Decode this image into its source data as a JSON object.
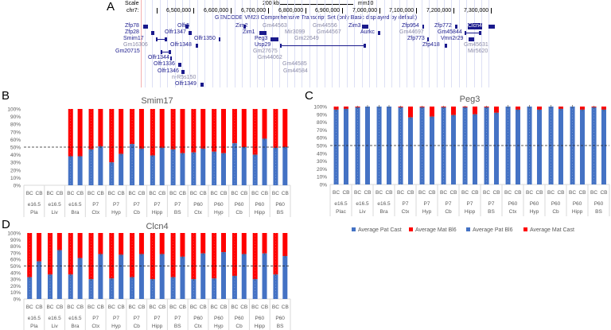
{
  "panel_labels": {
    "a": "A",
    "b": "B",
    "c": "C",
    "d": "D"
  },
  "browser": {
    "scale_label": "Scale",
    "scale_value": "200 kb",
    "assembly": "mm10",
    "chrom_label": "chr7:",
    "ticks": [
      "6,500,000",
      "6,600,000",
      "6,700,000",
      "6,800,000",
      "6,900,000",
      "7,000,000",
      "7,100,000",
      "7,200,000",
      "7,300,000"
    ],
    "track_title": "GENCODE VM23 Comprehensive Transcript Set (only Basic displayed by default)",
    "genes": [
      {
        "name": "Zfp78",
        "style": "dark"
      },
      {
        "name": "Olfr5",
        "style": "dark"
      },
      {
        "name": "Zim2",
        "style": "dark"
      },
      {
        "name": "Gm44563",
        "style": "gray"
      },
      {
        "name": "Gm44556",
        "style": "gray"
      },
      {
        "name": "Zim3",
        "style": "dark"
      },
      {
        "name": "Zfp954",
        "style": "dark"
      },
      {
        "name": "Zfp772",
        "style": "dark"
      },
      {
        "name": "Clcn4",
        "style": "highlight"
      },
      {
        "name": "Zfp28",
        "style": "dark"
      },
      {
        "name": "Olfr1347",
        "style": "dark"
      },
      {
        "name": "Zim1",
        "style": "dark"
      },
      {
        "name": "Mir3099",
        "style": "gray"
      },
      {
        "name": "Gm44567",
        "style": "gray"
      },
      {
        "name": "Aurkc",
        "style": "dark"
      },
      {
        "name": "Gm44697",
        "style": "gray"
      },
      {
        "name": "Gm45844",
        "style": "dark"
      },
      {
        "name": "Smim17",
        "style": "dark"
      },
      {
        "name": "Olfr1350",
        "style": "dark"
      },
      {
        "name": "Peg3",
        "style": "dark"
      },
      {
        "name": "Gm22649",
        "style": "gray"
      },
      {
        "name": "Zfp773",
        "style": "dark"
      },
      {
        "name": "Vmn2r29",
        "style": "dark"
      },
      {
        "name": "Gm16306",
        "style": "gray"
      },
      {
        "name": "Olfr1348",
        "style": "dark"
      },
      {
        "name": "Usp29",
        "style": "dark"
      },
      {
        "name": "Zfp418",
        "style": "dark"
      },
      {
        "name": "Gm45631",
        "style": "gray"
      },
      {
        "name": "Gm20715",
        "style": "dark"
      },
      {
        "name": "Gm27675",
        "style": "gray"
      },
      {
        "name": "Mir5620",
        "style": "gray"
      },
      {
        "name": "Olfr1344",
        "style": "dark"
      },
      {
        "name": "Gm44062",
        "style": "gray"
      },
      {
        "name": "Olfr1336",
        "style": "dark"
      },
      {
        "name": "Gm44585",
        "style": "gray"
      },
      {
        "name": "Olfr1346",
        "style": "dark"
      },
      {
        "name": "Gm44584",
        "style": "gray"
      },
      {
        "name": "n-R5s150",
        "style": "gray"
      },
      {
        "name": "Olfr1349",
        "style": "dark"
      }
    ]
  },
  "legend": [
    "Average Pat Cast",
    "Average Mat Bl6",
    "Average Pat Bl6",
    "Average Mat Cast"
  ],
  "colors": {
    "pat": "#4472C4",
    "mat": "#FF0000",
    "grid": "#d9d9d9",
    "axis_text": "#595959"
  },
  "chart_data": [
    {
      "type": "bar",
      "stacked": true,
      "title": "Smim17",
      "ylim": [
        0,
        100
      ],
      "yticks": [
        "0%",
        "10%",
        "20%",
        "30%",
        "40%",
        "50%",
        "60%",
        "70%",
        "80%",
        "90%",
        "100%"
      ],
      "reference_line": 50,
      "groups": [
        [
          "e16.5",
          "Pla"
        ],
        [
          "e16.5",
          "Liv"
        ],
        [
          "e16.5",
          "Bra"
        ],
        [
          "P7",
          "Ctx"
        ],
        [
          "P7",
          "Hyp"
        ],
        [
          "P7",
          "Cb"
        ],
        [
          "P7",
          "Hipp"
        ],
        [
          "P7",
          "BS"
        ],
        [
          "P60",
          "Ctx"
        ],
        [
          "P60",
          "Hyp"
        ],
        [
          "P60",
          "Cb"
        ],
        [
          "P60",
          "Hipp"
        ],
        [
          "P60",
          "BS"
        ]
      ],
      "subcategories": [
        "BC",
        "CB"
      ],
      "pat_values": [
        null,
        null,
        null,
        null,
        38,
        38,
        47,
        51,
        30,
        41,
        54,
        48,
        39,
        49,
        47,
        42,
        43,
        48,
        44,
        42,
        55,
        50,
        40,
        61,
        49,
        50
      ]
    },
    {
      "type": "bar",
      "stacked": true,
      "title": "Peg3",
      "ylim": [
        0,
        100
      ],
      "yticks": [
        "0%",
        "10%",
        "20%",
        "30%",
        "40%",
        "50%",
        "60%",
        "70%",
        "80%",
        "90%",
        "100%"
      ],
      "reference_line": 50,
      "groups": [
        [
          "e16.5",
          "Plac"
        ],
        [
          "e16.5",
          "Liv"
        ],
        [
          "e16.5",
          "Bra"
        ],
        [
          "P7",
          "Ctx"
        ],
        [
          "P7",
          "Hyp"
        ],
        [
          "P7",
          "Cb"
        ],
        [
          "P7",
          "Hipp"
        ],
        [
          "P7",
          "BS"
        ],
        [
          "P60",
          "Ctx"
        ],
        [
          "P60",
          "Hyp"
        ],
        [
          "P60",
          "Cb"
        ],
        [
          "P60",
          "Hipp"
        ],
        [
          "P60",
          "BS"
        ]
      ],
      "subcategories": [
        "BC",
        "CB"
      ],
      "pat_values": [
        96,
        97,
        99,
        100,
        100,
        100,
        99,
        86,
        99,
        87,
        99,
        89,
        99,
        90,
        99,
        92,
        100,
        96,
        100,
        96,
        100,
        97,
        100,
        96,
        99,
        96
      ]
    },
    {
      "type": "bar",
      "stacked": true,
      "title": "Clcn4",
      "ylim": [
        0,
        100
      ],
      "yticks": [
        "0%",
        "10%",
        "20%",
        "30%",
        "40%",
        "50%",
        "60%",
        "70%",
        "80%",
        "90%",
        "100%"
      ],
      "reference_line": 50,
      "groups": [
        [
          "e16.5",
          "Pla"
        ],
        [
          "e16.5",
          "Liv"
        ],
        [
          "e16.5",
          "Bra"
        ],
        [
          "P7",
          "Ctx"
        ],
        [
          "P7",
          "Hyp"
        ],
        [
          "P7",
          "Cb"
        ],
        [
          "P7",
          "Hipp"
        ],
        [
          "P7",
          "BS"
        ],
        [
          "P60",
          "Ctx"
        ],
        [
          "P60",
          "Hyp"
        ],
        [
          "P60",
          "Cb"
        ],
        [
          "P60",
          "Hipp"
        ],
        [
          "P60",
          "BS"
        ]
      ],
      "subcategories": [
        "BC",
        "CB"
      ],
      "pat_values": [
        33,
        57,
        37,
        74,
        37,
        62,
        30,
        68,
        31,
        67,
        33,
        68,
        30,
        68,
        33,
        64,
        30,
        69,
        31,
        71,
        35,
        68,
        30,
        69,
        37,
        65
      ]
    }
  ]
}
